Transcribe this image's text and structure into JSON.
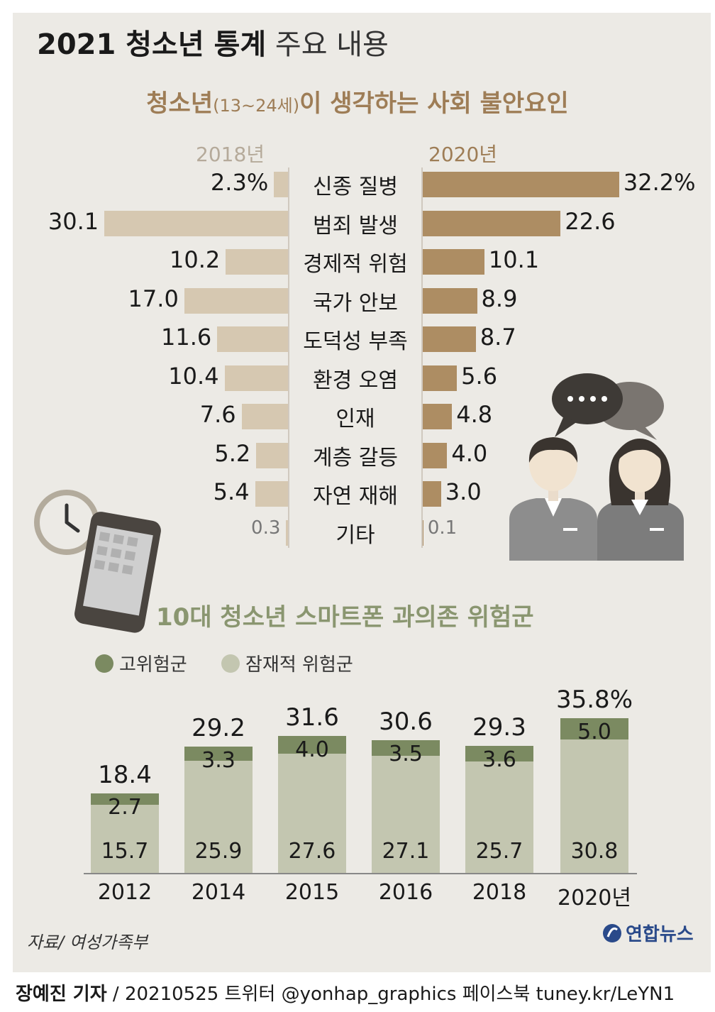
{
  "title": {
    "bold": "2021 청소년 통계",
    "light": "주요 내용"
  },
  "section1": {
    "title_main": "청소년",
    "title_sub": "(13~24세)",
    "title_rest": "이 생각하는 사회 불안요인",
    "year_left": "2018년",
    "year_right": "2020년"
  },
  "section2": {
    "title": "10대 청소년 스마트폰 과의존 위험군",
    "legend_high": "고위험군",
    "legend_potential": "잠재적 위험군"
  },
  "source": "자료/ 여성가족부",
  "credit": {
    "name": "장예진 기자",
    "rest": "/ 20210525 트위터 @yonhap_graphics  페이스북 tuney.kr/LeYN1"
  },
  "logo": "연합뉴스",
  "colors": {
    "bar_2018": "#d6c8b1",
    "bar_2020": "#ad8d63",
    "high_risk": "#7b8a61",
    "potential_risk": "#c3c6b0",
    "title_brown": "#9e7d56",
    "title_green": "#8a9670"
  },
  "icons": [
    "clock-icon",
    "smartphone-icon",
    "speech-bubble-icon",
    "student-boy-icon",
    "student-girl-icon"
  ],
  "chart_data": [
    {
      "type": "bar",
      "orientation": "horizontal-butterfly",
      "categories": [
        "신종 질병",
        "범죄 발생",
        "경제적 위험",
        "국가 안보",
        "도덕성 부족",
        "환경 오염",
        "인재",
        "계층 갈등",
        "자연 재해",
        "기타"
      ],
      "series": [
        {
          "name": "2018년",
          "values": [
            2.3,
            30.1,
            10.2,
            17.0,
            11.6,
            10.4,
            7.6,
            5.2,
            5.4,
            0.3
          ],
          "labels": [
            "2.3%",
            "30.1",
            "10.2",
            "17.0",
            "11.6",
            "10.4",
            "7.6",
            "5.2",
            "5.4",
            "0.3"
          ]
        },
        {
          "name": "2020년",
          "values": [
            32.2,
            22.6,
            10.1,
            8.9,
            8.7,
            5.6,
            4.8,
            4.0,
            3.0,
            0.1
          ],
          "labels": [
            "32.2%",
            "22.6",
            "10.1",
            "8.9",
            "8.7",
            "5.6",
            "4.8",
            "4.0",
            "3.0",
            "0.1"
          ]
        }
      ]
    },
    {
      "type": "bar",
      "stacked": true,
      "categories": [
        "2012",
        "2014",
        "2015",
        "2016",
        "2018",
        "2020년"
      ],
      "series": [
        {
          "name": "잠재적 위험군",
          "values": [
            15.7,
            25.9,
            27.6,
            27.1,
            25.7,
            30.8
          ],
          "labels": [
            "15.7",
            "25.9",
            "27.6",
            "27.1",
            "25.7",
            "30.8"
          ]
        },
        {
          "name": "고위험군",
          "values": [
            2.7,
            3.3,
            4.0,
            3.5,
            3.6,
            5.0
          ],
          "labels": [
            "2.7",
            "3.3",
            "4.0",
            "3.5",
            "3.6",
            "5.0"
          ]
        }
      ],
      "totals": [
        18.4,
        29.2,
        31.6,
        30.6,
        29.3,
        35.8
      ],
      "total_labels": [
        "18.4",
        "29.2",
        "31.6",
        "30.6",
        "29.3",
        "35.8%"
      ]
    }
  ]
}
